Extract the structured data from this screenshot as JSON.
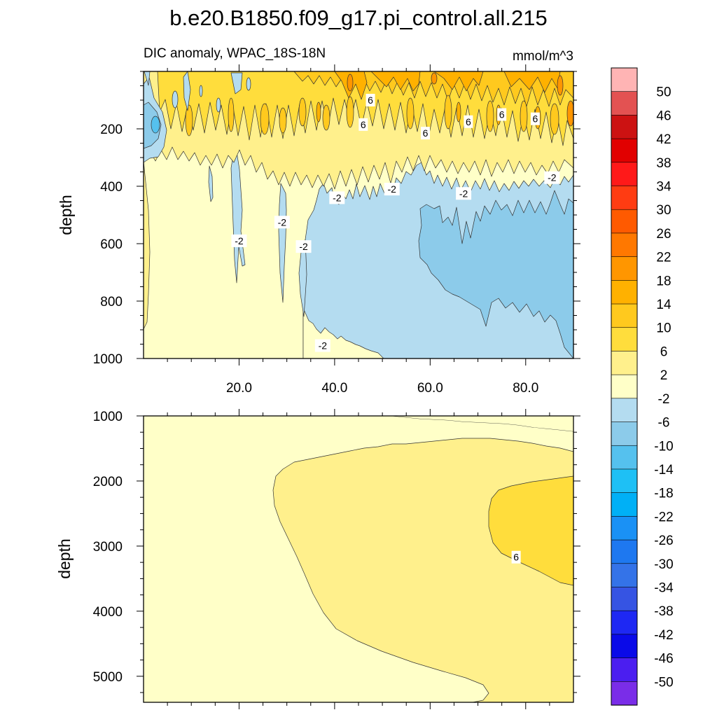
{
  "chart_data": {
    "type": "heatmap",
    "title": "b.e20.B1850.f09_g17.pi_control.all.215",
    "subtitle_left": "DIC anomaly, WPAC_18S-18N",
    "units": "mmol/m^3",
    "x_axis": {
      "range": [
        0,
        90
      ],
      "ticks": [
        20,
        40,
        60,
        80
      ],
      "tick_labels": [
        "20.0",
        "40.0",
        "60.0",
        "80.0"
      ]
    },
    "panels": [
      {
        "name": "upper",
        "ylabel": "depth",
        "ylim": [
          0,
          1000
        ],
        "reversed": true,
        "yticks": [
          200,
          400,
          600,
          800,
          1000
        ],
        "ytick_labels": [
          "200",
          "400",
          "600",
          "800",
          "1000"
        ],
        "contour_labels": [
          {
            "text": "6",
            "x": 47.5,
            "y": 100
          },
          {
            "text": "6",
            "x": 46,
            "y": 185
          },
          {
            "text": "6",
            "x": 59,
            "y": 215
          },
          {
            "text": "6",
            "x": 68,
            "y": 175
          },
          {
            "text": "6",
            "x": 75,
            "y": 150
          },
          {
            "text": "6",
            "x": 82,
            "y": 165
          },
          {
            "text": "-2",
            "x": 85.5,
            "y": 370
          },
          {
            "text": "-2",
            "x": 67,
            "y": 425
          },
          {
            "text": "-2",
            "x": 52,
            "y": 410
          },
          {
            "text": "-2",
            "x": 40.5,
            "y": 440
          },
          {
            "text": "-2",
            "x": 29,
            "y": 525
          },
          {
            "text": "-2",
            "x": 33.5,
            "y": 610
          },
          {
            "text": "-2",
            "x": 20,
            "y": 590
          },
          {
            "text": "-2",
            "x": 37.5,
            "y": 955
          }
        ]
      },
      {
        "name": "lower",
        "ylabel": "depth",
        "ylim": [
          1000,
          5400
        ],
        "reversed": true,
        "yticks": [
          1000,
          2000,
          3000,
          4000,
          5000
        ],
        "ytick_labels": [
          "1000",
          "2000",
          "3000",
          "4000",
          "5000"
        ],
        "contour_labels": [
          {
            "text": "6",
            "x": 78,
            "y": 3170
          }
        ]
      }
    ],
    "colorbar": {
      "levels": [
        "50",
        "46",
        "42",
        "38",
        "34",
        "30",
        "26",
        "22",
        "18",
        "14",
        "10",
        "6",
        "2",
        "-2",
        "-6",
        "-10",
        "-14",
        "-18",
        "-22",
        "-26",
        "-30",
        "-34",
        "-38",
        "-42",
        "-46",
        "-50"
      ],
      "colors": [
        "#ffb4b4",
        "#e35252",
        "#cc1212",
        "#e10000",
        "#ff1919",
        "#ff3c12",
        "#ff5a00",
        "#ff7800",
        "#ff9600",
        "#ffb100",
        "#ffc91e",
        "#ffdd3c",
        "#fff08c",
        "#ffffc8",
        "#b4dcf0",
        "#8ccbea",
        "#55c1ee",
        "#1ec0f5",
        "#00b0f6",
        "#1a91f5",
        "#1e78f0",
        "#3473e8",
        "#3654e3",
        "#1e28f3",
        "#0a0ae8",
        "#4b1ef0",
        "#7a2de8"
      ]
    }
  }
}
